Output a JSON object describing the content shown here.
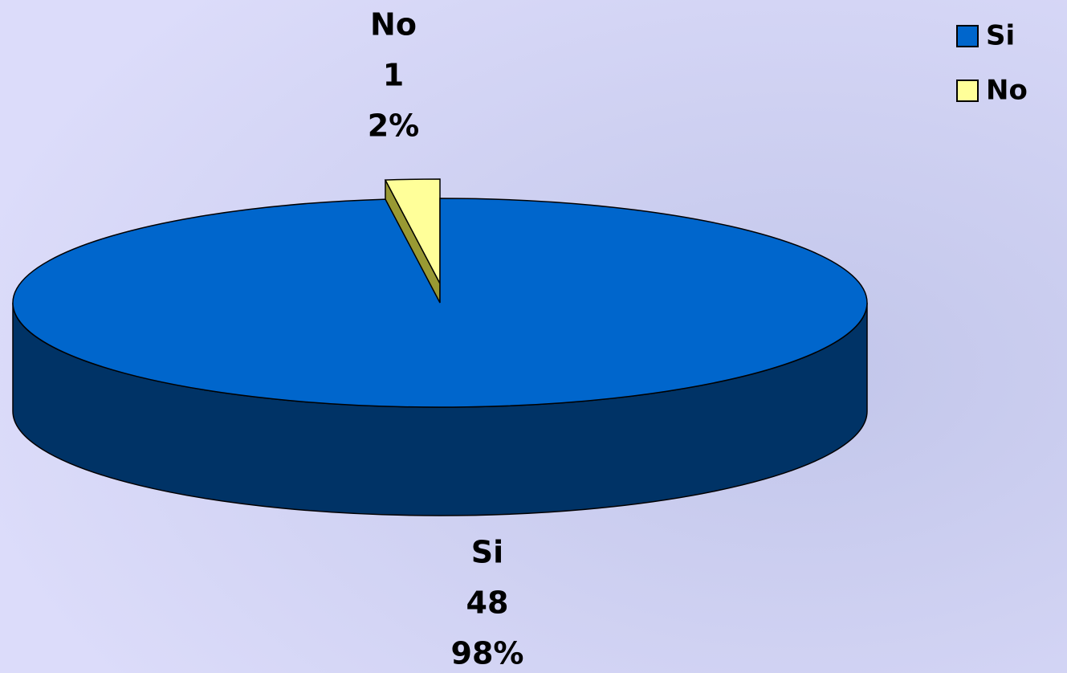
{
  "chart_data": {
    "type": "pie",
    "categories": [
      "Si",
      "No"
    ],
    "values": [
      48,
      1
    ],
    "percent_values": [
      98,
      2
    ],
    "percent_labels": [
      "98%",
      "2%"
    ],
    "colors": [
      "#0066cc",
      "#ffff99"
    ],
    "side_colors": [
      "#003366",
      "#999933"
    ],
    "legend": "top-right"
  }
}
